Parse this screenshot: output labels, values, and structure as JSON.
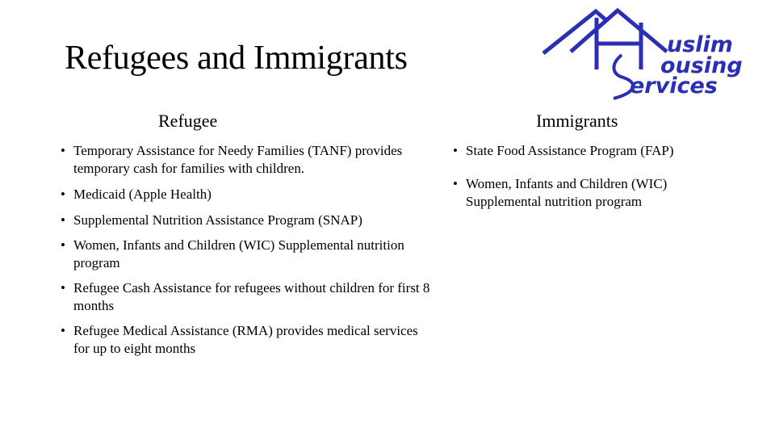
{
  "slide": {
    "title": "Refugees and Immigrants",
    "logo": {
      "text": "Muslim Housing Services",
      "lines": [
        "uslim",
        "ousing",
        "ervices"
      ],
      "color": "#2b2fb3"
    },
    "left_column": {
      "heading": "Refugee",
      "bullets": [
        "Temporary Assistance for Needy Families (TANF) provides temporary cash for families with children.",
        "Medicaid (Apple Health)",
        "Supplemental Nutrition Assistance Program (SNAP)",
        "Women, Infants and Children (WIC) Supplemental nutrition program",
        "Refugee Cash Assistance for refugees without children for first 8 months",
        "Refugee Medical Assistance (RMA) provides medical services for up to eight months"
      ]
    },
    "right_column": {
      "heading": "Immigrants",
      "bullets": [
        "State Food Assistance Program (FAP)",
        "Women, Infants and Children (WIC) Supplemental nutrition program"
      ]
    }
  }
}
